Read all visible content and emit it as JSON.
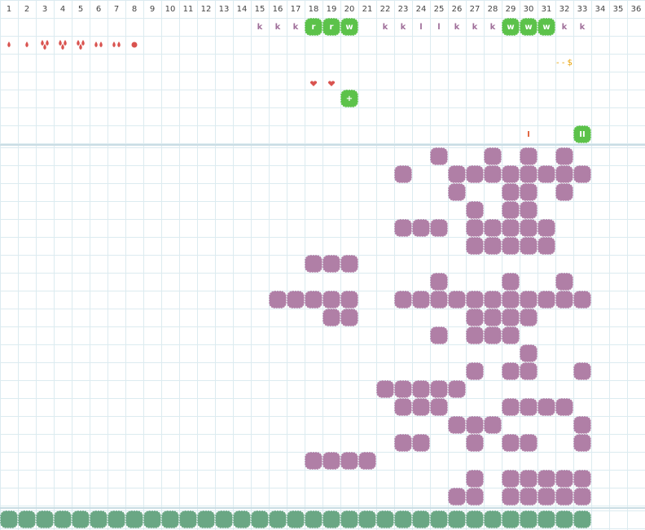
{
  "columns": [
    1,
    2,
    3,
    4,
    5,
    6,
    7,
    8,
    9,
    10,
    11,
    12,
    13,
    14,
    15,
    16,
    17,
    18,
    19,
    20,
    21,
    22,
    23,
    24,
    25,
    26,
    27,
    28,
    29,
    30,
    31,
    32,
    33,
    34,
    35,
    36
  ],
  "board": {
    "row_1": [
      null,
      null,
      null,
      null,
      null,
      null,
      null,
      null,
      null,
      null,
      null,
      null,
      null,
      null,
      "k",
      "k",
      "k",
      "r",
      "r",
      "w",
      null,
      "k",
      "k",
      "l",
      "l",
      "k",
      "k",
      "k",
      "w",
      "w",
      "w",
      "k",
      "k",
      null,
      null,
      null
    ],
    "row_3": [
      null,
      null,
      null,
      null,
      null,
      null,
      null,
      null,
      null,
      null,
      null,
      null,
      null,
      null,
      null,
      null,
      null,
      null,
      null,
      null,
      null,
      null,
      null,
      null,
      null,
      null,
      null,
      null,
      null,
      null,
      null,
      "- - $",
      null,
      null,
      null,
      null
    ],
    "row_5": [
      null,
      null,
      null,
      null,
      null,
      null,
      null,
      null,
      null,
      null,
      null,
      null,
      null,
      null,
      null,
      null,
      null,
      null,
      null,
      "+",
      null,
      null,
      null,
      null,
      null,
      null,
      null,
      null,
      null,
      null,
      null,
      null,
      null,
      null,
      null,
      null
    ],
    "row_7": [
      null,
      null,
      null,
      null,
      null,
      null,
      null,
      null,
      null,
      null,
      null,
      null,
      null,
      null,
      null,
      null,
      null,
      null,
      null,
      null,
      null,
      null,
      null,
      null,
      null,
      null,
      null,
      null,
      null,
      "I",
      null,
      null,
      "II",
      null,
      null,
      null
    ]
  }
}
